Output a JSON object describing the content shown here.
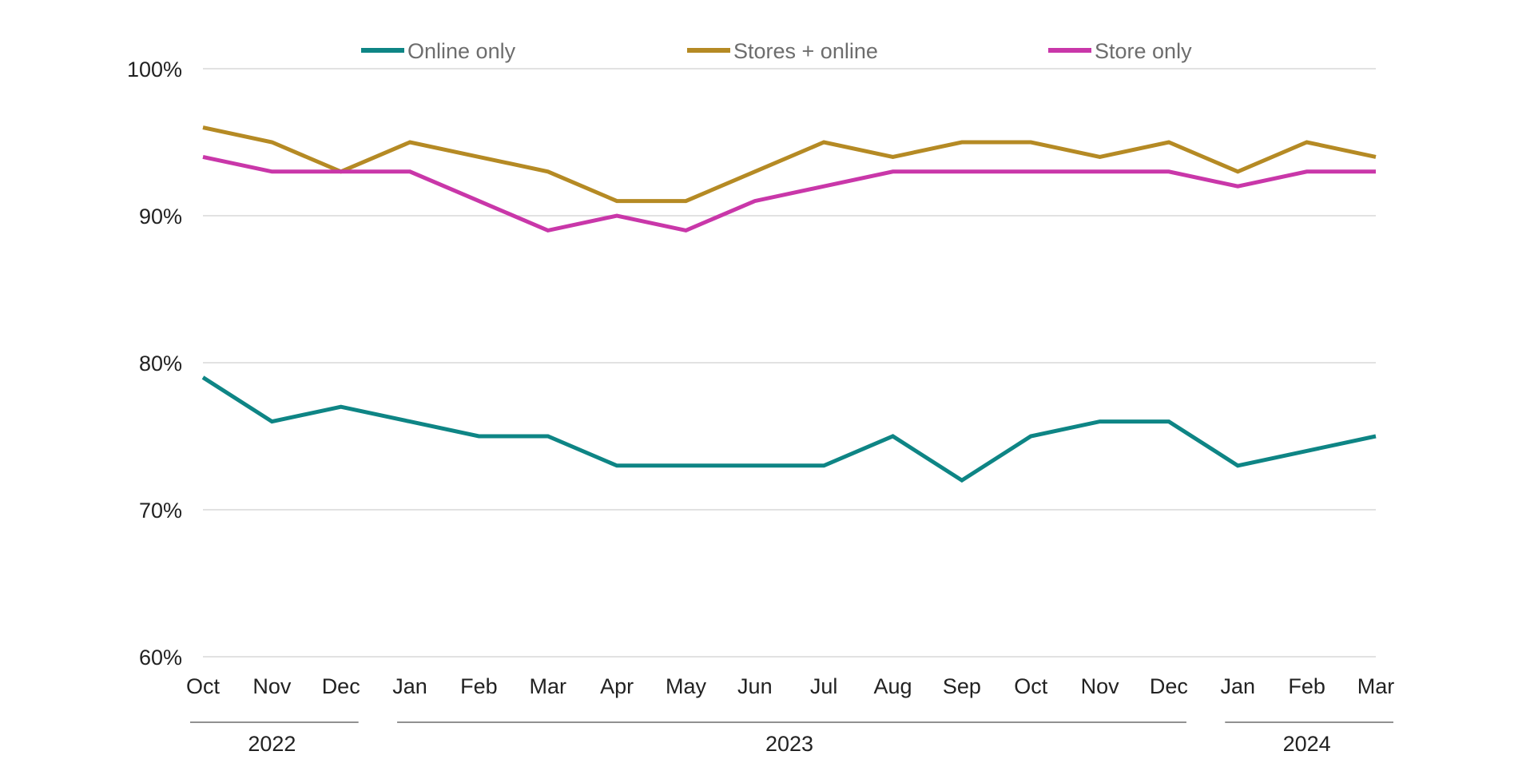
{
  "chart_data": {
    "type": "line",
    "title": "",
    "xlabel": "",
    "ylabel": "",
    "ylim": [
      60,
      100
    ],
    "yticks": [
      60,
      70,
      80,
      90,
      100
    ],
    "ytick_labels": [
      "60%",
      "70%",
      "80%",
      "90%",
      "100%"
    ],
    "grid": true,
    "legend": "top",
    "categories": [
      "Oct",
      "Nov",
      "Dec",
      "Jan",
      "Feb",
      "Mar",
      "Apr",
      "May",
      "Jun",
      "Jul",
      "Aug",
      "Sep",
      "Oct",
      "Nov",
      "Dec",
      "Jan",
      "Feb",
      "Mar"
    ],
    "year_groups": [
      {
        "label": "2022",
        "start": 0,
        "end": 2
      },
      {
        "label": "2023",
        "start": 3,
        "end": 14
      },
      {
        "label": "2024",
        "start": 15,
        "end": 17
      }
    ],
    "series": [
      {
        "name": "Online only",
        "color": "#0e8585",
        "values": [
          79,
          76,
          77,
          76,
          75,
          75,
          73,
          73,
          73,
          73,
          75,
          72,
          75,
          76,
          76,
          73,
          74,
          75
        ]
      },
      {
        "name": "Stores + online",
        "color": "#b58a24",
        "values": [
          96,
          95,
          93,
          95,
          94,
          93,
          91,
          91,
          93,
          95,
          94,
          95,
          95,
          94,
          95,
          93,
          95,
          94
        ]
      },
      {
        "name": "Store only",
        "color": "#c937a9",
        "values": [
          94,
          93,
          93,
          93,
          91,
          89,
          90,
          89,
          91,
          92,
          93,
          93,
          93,
          93,
          93,
          92,
          93,
          93
        ]
      }
    ]
  }
}
